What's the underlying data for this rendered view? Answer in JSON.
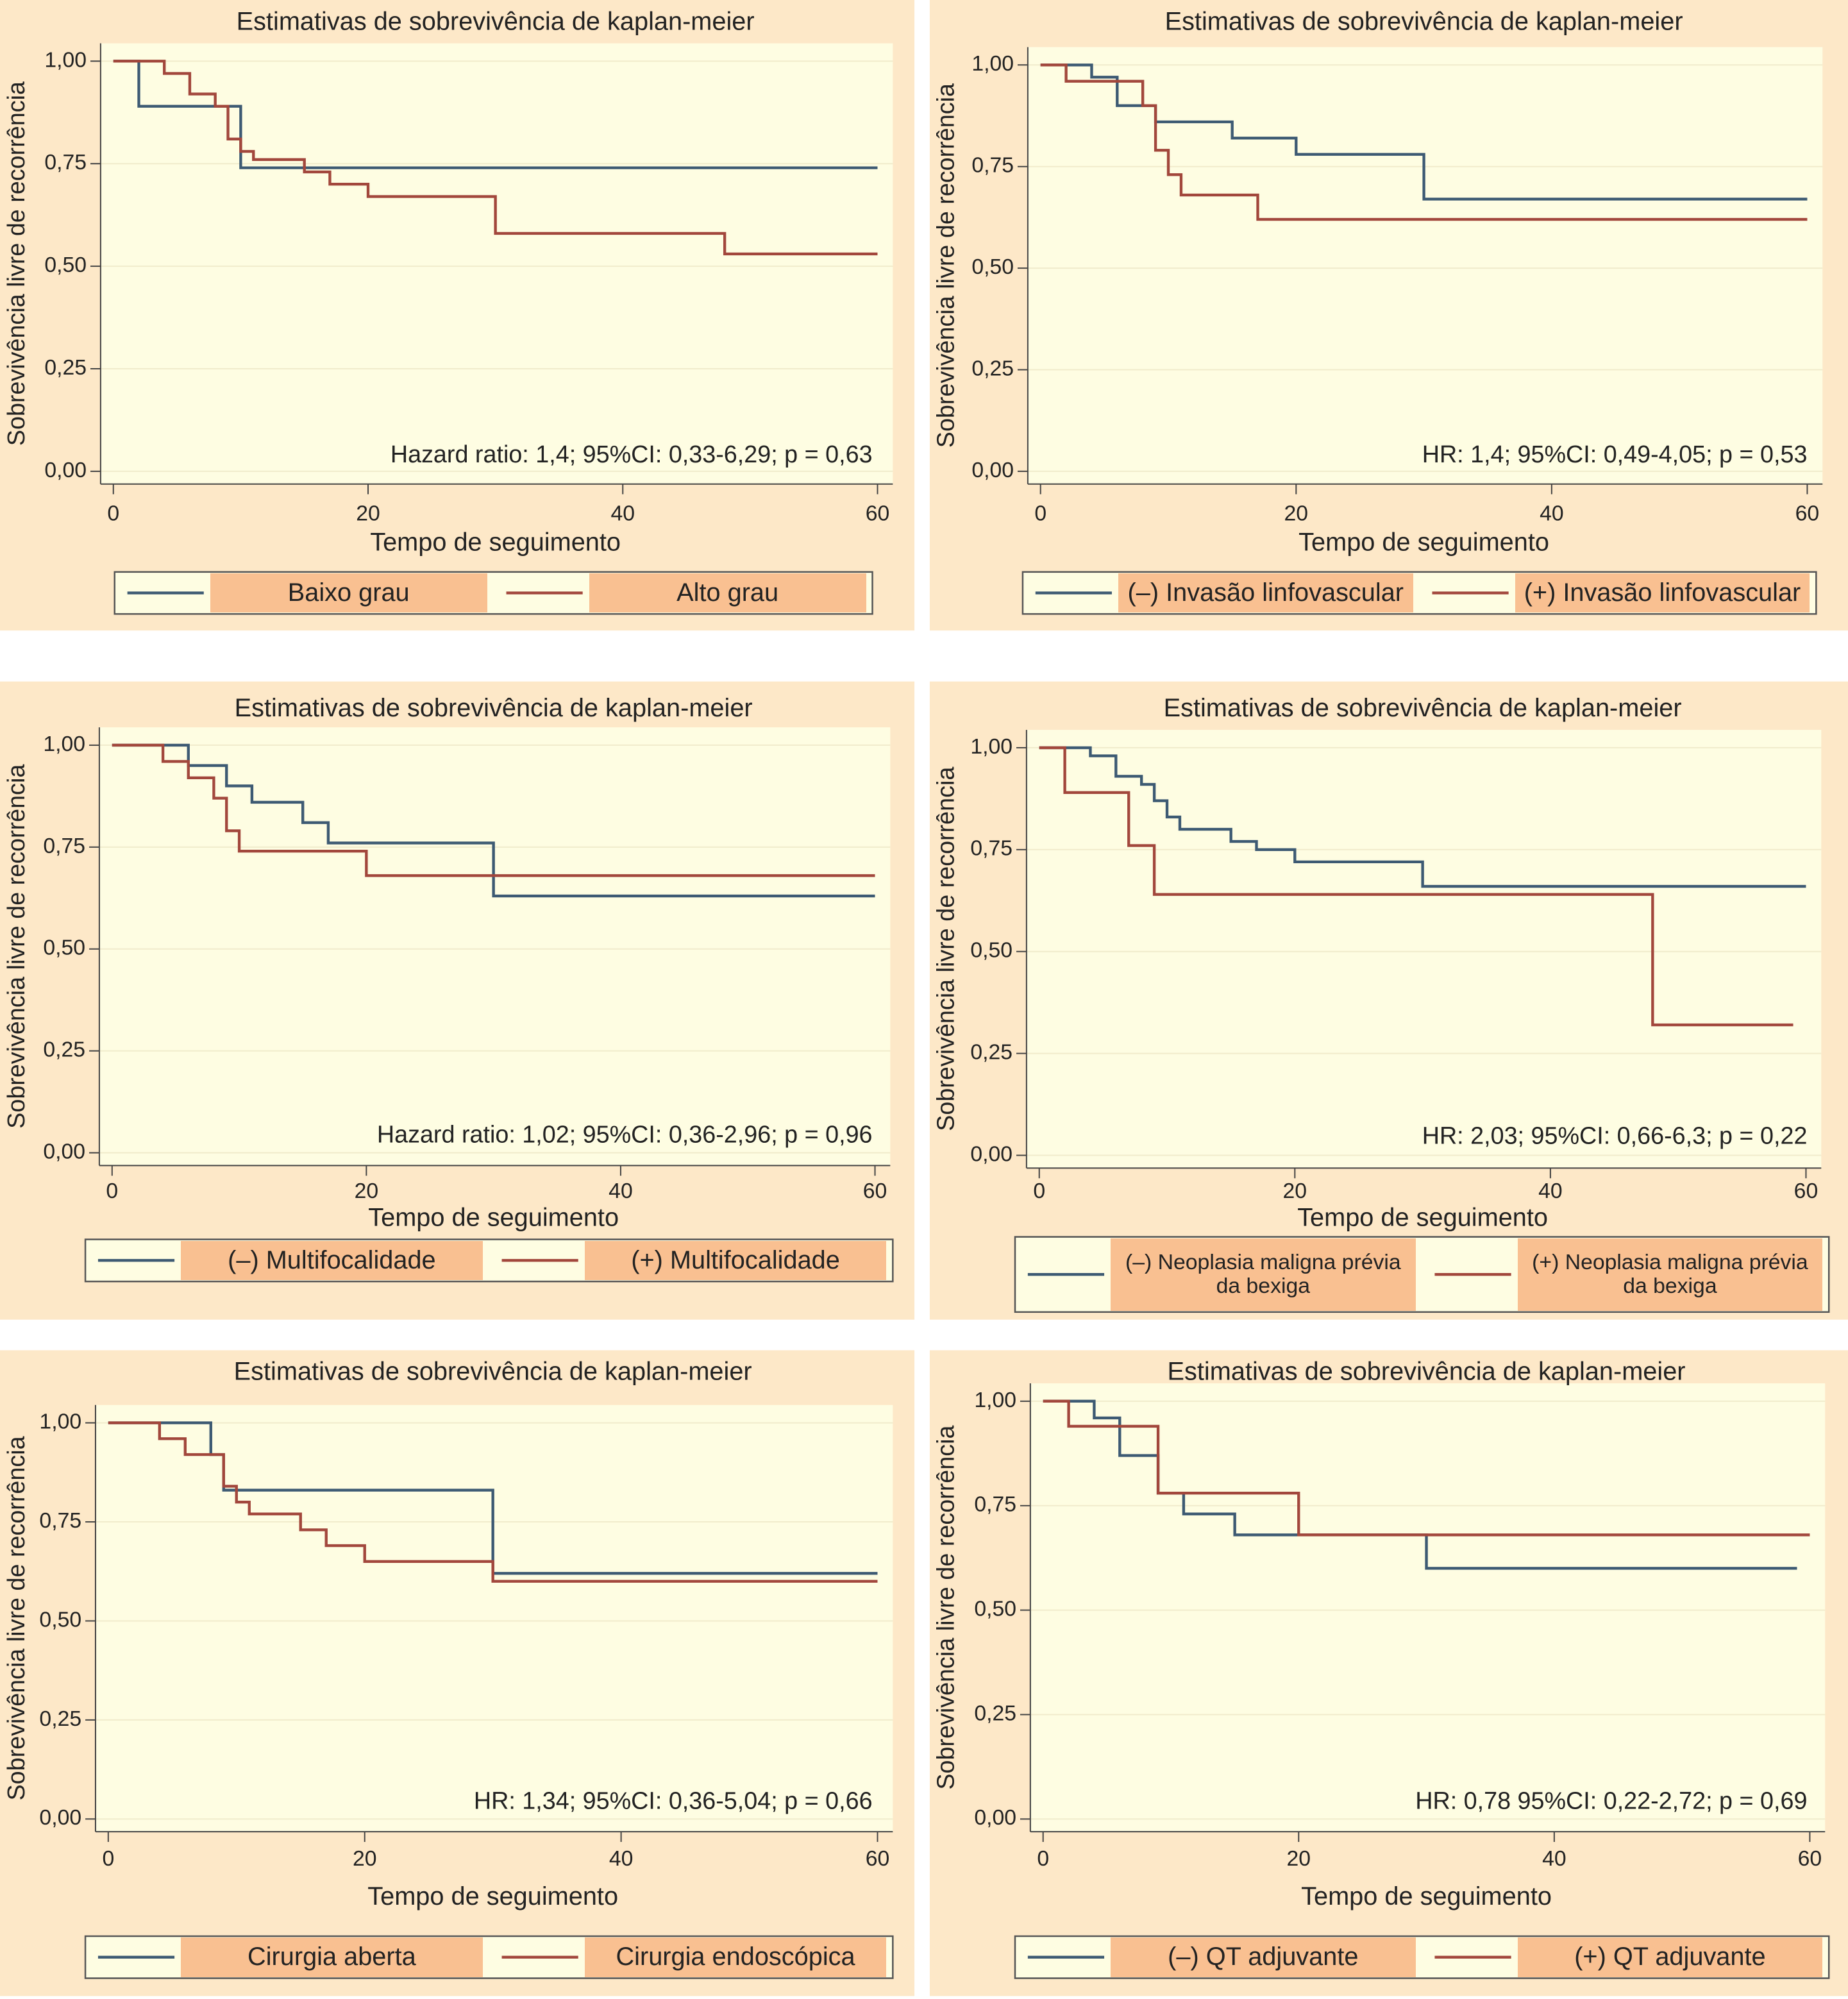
{
  "chart_data": [
    {
      "type": "line",
      "title": "Estimativas de sobrevivência de kaplan-meier",
      "x_label": "Tempo de seguimento",
      "y_label": "Sobrevivência livre de recorrência",
      "annotation": "Hazard ratio: 1,4; 95%CI: 0,33-6,29; p = 0,63",
      "xlim": [
        0,
        60
      ],
      "ylim": [
        0,
        1
      ],
      "xticks": [
        0,
        20,
        40,
        60
      ],
      "yticks": [
        {
          "value": 0,
          "label": "0,00"
        },
        {
          "value": 0.25,
          "label": "0,25"
        },
        {
          "value": 0.5,
          "label": "0,50"
        },
        {
          "value": 0.75,
          "label": "0,75"
        },
        {
          "value": 1,
          "label": "1,00"
        }
      ],
      "grid": true,
      "series": [
        {
          "name": "Baixo grau",
          "color": "#3d5a73",
          "x": [
            0,
            2,
            2,
            10,
            10,
            60
          ],
          "values": [
            1,
            1,
            0.89,
            0.89,
            0.74,
            0.74
          ]
        },
        {
          "name": "Alto grau",
          "color": "#a2473c",
          "x": [
            0,
            4,
            4,
            6,
            6,
            8,
            8,
            9,
            9,
            10,
            10,
            11,
            11,
            15,
            15,
            17,
            17,
            20,
            20,
            30,
            30,
            48,
            48,
            60
          ],
          "values": [
            1,
            1,
            0.97,
            0.97,
            0.92,
            0.92,
            0.89,
            0.89,
            0.81,
            0.81,
            0.78,
            0.78,
            0.76,
            0.76,
            0.73,
            0.73,
            0.7,
            0.7,
            0.67,
            0.67,
            0.58,
            0.58,
            0.53,
            0.53
          ]
        }
      ]
    },
    {
      "type": "line",
      "title": "Estimativas de sobrevivência de kaplan-meier",
      "x_label": "Tempo de seguimento",
      "y_label": "Sobrevivência livre de recorrência",
      "annotation": "HR: 1,4; 95%CI: 0,49-4,05; p = 0,53",
      "xlim": [
        0,
        60
      ],
      "ylim": [
        0,
        1
      ],
      "xticks": [
        0,
        20,
        40,
        60
      ],
      "yticks": [
        {
          "value": 0,
          "label": "0,00"
        },
        {
          "value": 0.25,
          "label": "0,25"
        },
        {
          "value": 0.5,
          "label": "0,50"
        },
        {
          "value": 0.75,
          "label": "0,75"
        },
        {
          "value": 1,
          "label": "1,00"
        }
      ],
      "grid": true,
      "series": [
        {
          "name": "(–) Invasão linfovascular",
          "color": "#3d5a73",
          "x": [
            0,
            4,
            4,
            6,
            6,
            9,
            9,
            15,
            15,
            20,
            20,
            30,
            30,
            60
          ],
          "values": [
            1,
            1,
            0.97,
            0.97,
            0.9,
            0.9,
            0.86,
            0.86,
            0.82,
            0.82,
            0.78,
            0.78,
            0.67,
            0.67
          ]
        },
        {
          "name": "(+) Invasão linfovascular",
          "color": "#a2473c",
          "x": [
            0,
            2,
            2,
            8,
            8,
            9,
            9,
            10,
            10,
            11,
            11,
            17,
            17,
            60
          ],
          "values": [
            1,
            1,
            0.96,
            0.96,
            0.9,
            0.9,
            0.79,
            0.79,
            0.73,
            0.73,
            0.68,
            0.68,
            0.62,
            0.62
          ]
        }
      ]
    },
    {
      "type": "line",
      "title": "Estimativas de sobrevivência de kaplan-meier",
      "x_label": "Tempo de seguimento",
      "y_label": "Sobrevivência livre de recorrência",
      "annotation": "Hazard ratio: 1,02; 95%CI: 0,36-2,96; p = 0,96",
      "xlim": [
        0,
        60
      ],
      "ylim": [
        0,
        1
      ],
      "xticks": [
        0,
        20,
        40,
        60
      ],
      "yticks": [
        {
          "value": 0,
          "label": "0,00"
        },
        {
          "value": 0.25,
          "label": "0,25"
        },
        {
          "value": 0.5,
          "label": "0,50"
        },
        {
          "value": 0.75,
          "label": "0,75"
        },
        {
          "value": 1,
          "label": "1,00"
        }
      ],
      "grid": true,
      "series": [
        {
          "name": "(–) Multifocalidade",
          "color": "#3d5a73",
          "x": [
            0,
            6,
            6,
            9,
            9,
            11,
            11,
            15,
            15,
            17,
            17,
            30,
            30,
            60
          ],
          "values": [
            1,
            1,
            0.95,
            0.95,
            0.9,
            0.9,
            0.86,
            0.86,
            0.81,
            0.81,
            0.76,
            0.76,
            0.63,
            0.63
          ]
        },
        {
          "name": "(+) Multifocalidade",
          "color": "#a2473c",
          "x": [
            0,
            4,
            4,
            6,
            6,
            8,
            8,
            9,
            9,
            10,
            10,
            20,
            20,
            60
          ],
          "values": [
            1,
            1,
            0.96,
            0.96,
            0.92,
            0.92,
            0.87,
            0.87,
            0.79,
            0.79,
            0.74,
            0.74,
            0.68,
            0.68
          ]
        }
      ]
    },
    {
      "type": "line",
      "title": "Estimativas de sobrevivência de kaplan-meier",
      "x_label": "Tempo de seguimento",
      "y_label": "Sobrevivência livre de recorrência",
      "annotation": "HR: 2,03; 95%CI: 0,66-6,3; p = 0,22",
      "xlim": [
        0,
        60
      ],
      "ylim": [
        0,
        1
      ],
      "xticks": [
        0,
        20,
        40,
        60
      ],
      "yticks": [
        {
          "value": 0,
          "label": "0,00"
        },
        {
          "value": 0.25,
          "label": "0,25"
        },
        {
          "value": 0.5,
          "label": "0,50"
        },
        {
          "value": 0.75,
          "label": "0,75"
        },
        {
          "value": 1,
          "label": "1,00"
        }
      ],
      "grid": true,
      "series": [
        {
          "name": "(–) Neoplasia maligna prévia da bexiga",
          "color": "#3d5a73",
          "x": [
            0,
            4,
            4,
            6,
            6,
            8,
            8,
            9,
            9,
            10,
            10,
            11,
            11,
            15,
            15,
            17,
            17,
            20,
            20,
            30,
            30,
            60
          ],
          "values": [
            1,
            1,
            0.98,
            0.98,
            0.93,
            0.93,
            0.91,
            0.91,
            0.87,
            0.87,
            0.83,
            0.83,
            0.8,
            0.8,
            0.77,
            0.77,
            0.75,
            0.75,
            0.72,
            0.72,
            0.66,
            0.66
          ]
        },
        {
          "name": "(+) Neoplasia maligna prévia da bexiga",
          "color": "#a2473c",
          "x": [
            0,
            2,
            2,
            7,
            7,
            9,
            9,
            48,
            48,
            59
          ],
          "values": [
            1,
            1,
            0.89,
            0.89,
            0.76,
            0.76,
            0.64,
            0.64,
            0.32,
            0.32
          ]
        }
      ]
    },
    {
      "type": "line",
      "title": "Estimativas de sobrevivência de kaplan-meier",
      "x_label": "Tempo de seguimento",
      "y_label": "Sobrevivência livre de recorrência",
      "annotation": "HR: 1,34; 95%CI: 0,36-5,04; p = 0,66",
      "xlim": [
        0,
        60
      ],
      "ylim": [
        0,
        1
      ],
      "xticks": [
        0,
        20,
        40,
        60
      ],
      "yticks": [
        {
          "value": 0,
          "label": "0,00"
        },
        {
          "value": 0.25,
          "label": "0,25"
        },
        {
          "value": 0.5,
          "label": "0,50"
        },
        {
          "value": 0.75,
          "label": "0,75"
        },
        {
          "value": 1,
          "label": "1,00"
        }
      ],
      "grid": true,
      "series": [
        {
          "name": "Cirurgia aberta",
          "color": "#3d5a73",
          "x": [
            0,
            8,
            8,
            9,
            9,
            30,
            30,
            60
          ],
          "values": [
            1,
            1,
            0.92,
            0.92,
            0.83,
            0.83,
            0.62,
            0.62
          ]
        },
        {
          "name": "Cirurgia endoscópica",
          "color": "#a2473c",
          "x": [
            0,
            4,
            4,
            6,
            6,
            9,
            9,
            10,
            10,
            11,
            11,
            15,
            15,
            17,
            17,
            20,
            20,
            30,
            30,
            60
          ],
          "values": [
            1,
            1,
            0.96,
            0.96,
            0.92,
            0.92,
            0.84,
            0.84,
            0.8,
            0.8,
            0.77,
            0.77,
            0.73,
            0.73,
            0.69,
            0.69,
            0.65,
            0.65,
            0.6,
            0.6
          ]
        }
      ]
    },
    {
      "type": "line",
      "title": "Estimativas de sobrevivência de kaplan-meier",
      "x_label": "Tempo de seguimento",
      "y_label": "Sobrevivência livre de recorrência",
      "annotation": "HR: 0,78 95%CI: 0,22-2,72; p = 0,69",
      "xlim": [
        0,
        60
      ],
      "ylim": [
        0,
        1
      ],
      "xticks": [
        0,
        20,
        40,
        60
      ],
      "yticks": [
        {
          "value": 0,
          "label": "0,00"
        },
        {
          "value": 0.25,
          "label": "0,25"
        },
        {
          "value": 0.5,
          "label": "0,50"
        },
        {
          "value": 0.75,
          "label": "0,75"
        },
        {
          "value": 1,
          "label": "1,00"
        }
      ],
      "grid": true,
      "series": [
        {
          "name": "(–) QT adjuvante",
          "color": "#3d5a73",
          "x": [
            0,
            4,
            4,
            6,
            6,
            9,
            9,
            11,
            11,
            15,
            15,
            30,
            30,
            59
          ],
          "values": [
            1,
            1,
            0.96,
            0.96,
            0.87,
            0.87,
            0.78,
            0.78,
            0.73,
            0.73,
            0.68,
            0.68,
            0.6,
            0.6
          ]
        },
        {
          "name": "(+) QT adjuvante",
          "color": "#a2473c",
          "x": [
            0,
            2,
            2,
            9,
            9,
            20,
            20,
            60
          ],
          "values": [
            1,
            1,
            0.94,
            0.94,
            0.78,
            0.78,
            0.68,
            0.68
          ]
        }
      ]
    }
  ]
}
